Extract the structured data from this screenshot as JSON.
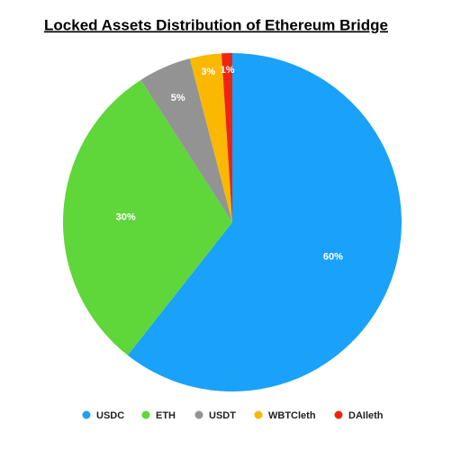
{
  "chart_data": {
    "type": "pie",
    "title": "Locked Assets Distribution of Ethereum Bridge",
    "categories": [
      "USDC",
      "ETH",
      "USDT",
      "WBTCleth",
      "DAIleth"
    ],
    "values": [
      60,
      30,
      5,
      3,
      1
    ],
    "value_labels": [
      "60%",
      "30%",
      "5%",
      "3%",
      "1%"
    ],
    "colors": [
      "#1aa1f9",
      "#5fd63a",
      "#939393",
      "#fbb800",
      "#f0230f"
    ]
  }
}
